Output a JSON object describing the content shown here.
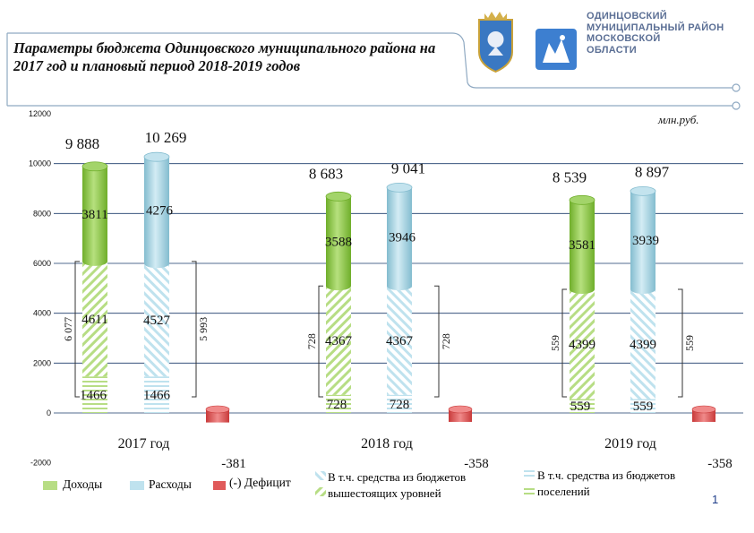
{
  "header": {
    "title": "Параметры бюджета Одинцовского муниципального района на 2017 год и плановый период 2018-2019 годов",
    "org_line1": "ОДИНЦОВСКИЙ",
    "org_line2": "МУНИЦИПАЛЬНЫЙ РАЙОН",
    "org_line3": "МОСКОВСКОЙ",
    "org_line4": "ОБЛАСТИ",
    "unit": "млн.руб.",
    "page_number": "1"
  },
  "colors": {
    "income": "#8cc63f",
    "expense": "#9fd0e0",
    "deficit": "#e05a5a",
    "line": "#8fa9c2"
  },
  "chart_data": {
    "type": "bar",
    "stacked": true,
    "ylim": [
      -2000,
      12000
    ],
    "yticks": [
      "12000",
      "10000",
      "8000",
      "6000",
      "4000",
      "2000",
      "0",
      "-2000"
    ],
    "ytick_values": [
      12000,
      10000,
      8000,
      6000,
      4000,
      2000,
      0,
      -2000
    ],
    "years": [
      {
        "label": "2017 год",
        "income": {
          "settlement": 1466,
          "upper": 4611,
          "own": 3811,
          "total": 9888,
          "total_label": "9 888",
          "settlement_label": "1466",
          "upper_label": "4611",
          "own_label": "3811"
        },
        "expense": {
          "settlement": 1466,
          "upper": 4527,
          "own": 4276,
          "total": 10269,
          "total_label": "10 269",
          "settlement_label": "1466",
          "upper_label": "4527",
          "own_label": "4276"
        },
        "deficit": -381,
        "deficit_label": "-381",
        "bracket_left": "6 077",
        "bracket_right": "5 993"
      },
      {
        "label": "2018 год",
        "income": {
          "settlement": 728,
          "upper": 4367,
          "own": 3588,
          "total": 8683,
          "total_label": "8 683",
          "settlement_label": "728",
          "upper_label": "4367",
          "own_label": "3588"
        },
        "expense": {
          "settlement": 728,
          "upper": 4367,
          "own": 3946,
          "total": 9041,
          "total_label": "9 041",
          "settlement_label": "728",
          "upper_label": "4367",
          "own_label": "3946"
        },
        "deficit": -358,
        "deficit_label": "-358",
        "bracket_left": "728",
        "bracket_right": "728"
      },
      {
        "label": "2019 год",
        "income": {
          "settlement": 559,
          "upper": 4399,
          "own": 3581,
          "total": 8539,
          "total_label": "8 539",
          "settlement_label": "559",
          "upper_label": "4399",
          "own_label": "3581"
        },
        "expense": {
          "settlement": 559,
          "upper": 4399,
          "own": 3939,
          "total": 8897,
          "total_label": "8 897",
          "settlement_label": "559",
          "upper_label": "4399",
          "own_label": "3939"
        },
        "deficit": -358,
        "deficit_label": "-358",
        "bracket_left": "559",
        "bracket_right": "559"
      }
    ],
    "legend": {
      "income": "Доходы",
      "expense": "Расходы",
      "deficit": "(-) Дефицит",
      "upper_budgets": "В т.ч. средства из бюджетов вышестоящих уровней",
      "settlement_budgets": "В т.ч. средства из бюджетов поселений"
    }
  }
}
